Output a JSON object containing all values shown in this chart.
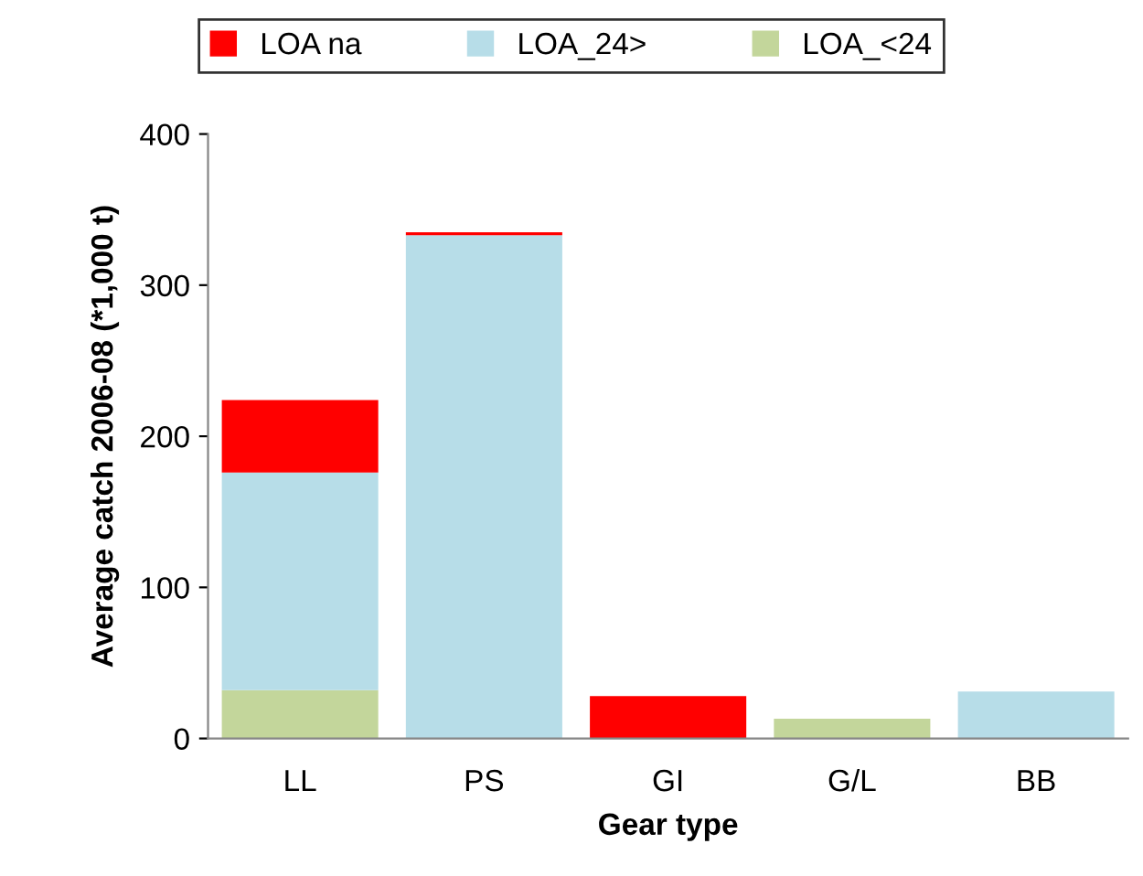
{
  "chart_data": {
    "type": "bar",
    "stacked": true,
    "xlabel": "Gear type",
    "ylabel": "Average catch 2006-08 (*1,000 t)",
    "categories": [
      "LL",
      "PS",
      "GI",
      "G/L",
      "BB"
    ],
    "series": [
      {
        "name": "LOA_<24",
        "color": "#c3d69b",
        "values": [
          32,
          0,
          0,
          13,
          0
        ]
      },
      {
        "name": "LOA_24>",
        "color": "#b7dde8",
        "values": [
          144,
          333,
          0,
          0,
          31
        ]
      },
      {
        "name": "LOA na",
        "color": "#ff0000",
        "values": [
          48,
          2,
          28,
          0,
          0
        ]
      }
    ],
    "ylim": [
      0,
      400
    ],
    "yticks": [
      0,
      100,
      200,
      300,
      400
    ],
    "grid": false,
    "legend": "top"
  }
}
